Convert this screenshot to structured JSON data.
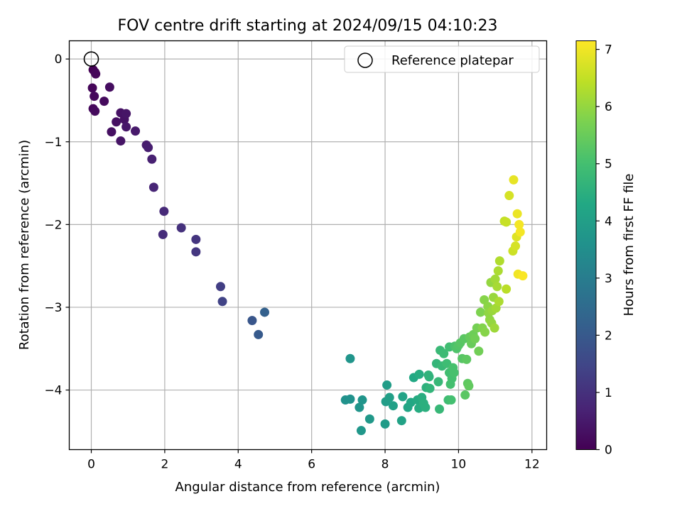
{
  "chart_data": {
    "type": "scatter",
    "title": "FOV centre drift starting at 2024/09/15 04:10:23",
    "xlabel": "Angular distance from reference (arcmin)",
    "ylabel": "Rotation from reference (arcmin)",
    "xlim": [
      -0.6,
      12.4
    ],
    "ylim": [
      -4.72,
      0.22
    ],
    "grid": true,
    "legend": {
      "placement": "top-right",
      "entries": [
        "Reference platepar"
      ]
    },
    "reference_point": {
      "x": 0,
      "y": 0,
      "label": "Reference platepar"
    },
    "colorbar": {
      "label": "Hours from first FF file",
      "range": [
        0,
        7.15
      ],
      "ticks": [
        "0",
        "1",
        "2",
        "3",
        "4",
        "5",
        "6",
        "7"
      ],
      "colormap": "viridis"
    },
    "x_ticks": [
      "0",
      "2",
      "4",
      "6",
      "8",
      "10",
      "12"
    ],
    "y_ticks": [
      "0",
      "−1",
      "−2",
      "−3",
      "−4"
    ],
    "points": [
      {
        "x": 0.05,
        "y": -0.13,
        "c": 0.0
      },
      {
        "x": 0.1,
        "y": -0.16,
        "c": 0.05
      },
      {
        "x": 0.12,
        "y": -0.18,
        "c": 0.1
      },
      {
        "x": 0.03,
        "y": -0.35,
        "c": 0.1
      },
      {
        "x": 0.08,
        "y": -0.45,
        "c": 0.15
      },
      {
        "x": 0.05,
        "y": -0.6,
        "c": 0.15
      },
      {
        "x": 0.1,
        "y": -0.63,
        "c": 0.2
      },
      {
        "x": 0.35,
        "y": -0.51,
        "c": 0.2
      },
      {
        "x": 0.5,
        "y": -0.34,
        "c": 0.25
      },
      {
        "x": 0.55,
        "y": -0.88,
        "c": 0.3
      },
      {
        "x": 0.68,
        "y": -0.76,
        "c": 0.3
      },
      {
        "x": 0.8,
        "y": -0.65,
        "c": 0.35
      },
      {
        "x": 0.9,
        "y": -0.73,
        "c": 0.35
      },
      {
        "x": 0.95,
        "y": -0.66,
        "c": 0.4
      },
      {
        "x": 0.8,
        "y": -0.99,
        "c": 0.4
      },
      {
        "x": 0.95,
        "y": -0.82,
        "c": 0.45
      },
      {
        "x": 1.2,
        "y": -0.87,
        "c": 0.5
      },
      {
        "x": 1.5,
        "y": -1.04,
        "c": 0.55
      },
      {
        "x": 1.55,
        "y": -1.07,
        "c": 0.6
      },
      {
        "x": 1.65,
        "y": -1.21,
        "c": 0.65
      },
      {
        "x": 1.7,
        "y": -1.55,
        "c": 0.75
      },
      {
        "x": 1.98,
        "y": -1.84,
        "c": 0.85
      },
      {
        "x": 1.95,
        "y": -2.12,
        "c": 0.9
      },
      {
        "x": 2.45,
        "y": -2.04,
        "c": 1.0
      },
      {
        "x": 2.85,
        "y": -2.18,
        "c": 1.1
      },
      {
        "x": 2.85,
        "y": -2.33,
        "c": 1.15
      },
      {
        "x": 3.52,
        "y": -2.75,
        "c": 1.3
      },
      {
        "x": 3.57,
        "y": -2.93,
        "c": 1.4
      },
      {
        "x": 4.38,
        "y": -3.16,
        "c": 1.9
      },
      {
        "x": 4.55,
        "y": -3.33,
        "c": 2.0
      },
      {
        "x": 4.72,
        "y": -3.06,
        "c": 2.2
      },
      {
        "x": 6.92,
        "y": -4.12,
        "c": 3.6
      },
      {
        "x": 7.05,
        "y": -4.11,
        "c": 3.6
      },
      {
        "x": 7.38,
        "y": -4.12,
        "c": 3.7
      },
      {
        "x": 7.3,
        "y": -4.21,
        "c": 3.7
      },
      {
        "x": 7.35,
        "y": -4.49,
        "c": 3.75
      },
      {
        "x": 7.58,
        "y": -4.35,
        "c": 3.8
      },
      {
        "x": 7.05,
        "y": -3.62,
        "c": 3.7
      },
      {
        "x": 8.0,
        "y": -4.41,
        "c": 3.9
      },
      {
        "x": 8.02,
        "y": -4.14,
        "c": 3.95
      },
      {
        "x": 8.05,
        "y": -3.94,
        "c": 3.95
      },
      {
        "x": 8.12,
        "y": -4.09,
        "c": 4.0
      },
      {
        "x": 8.22,
        "y": -4.19,
        "c": 4.05
      },
      {
        "x": 8.45,
        "y": -4.37,
        "c": 4.1
      },
      {
        "x": 8.48,
        "y": -4.08,
        "c": 4.15
      },
      {
        "x": 8.62,
        "y": -4.21,
        "c": 4.2
      },
      {
        "x": 8.7,
        "y": -4.15,
        "c": 4.25
      },
      {
        "x": 8.78,
        "y": -3.85,
        "c": 4.3
      },
      {
        "x": 8.88,
        "y": -4.12,
        "c": 4.35
      },
      {
        "x": 8.92,
        "y": -4.22,
        "c": 4.4
      },
      {
        "x": 8.93,
        "y": -3.81,
        "c": 4.4
      },
      {
        "x": 9.0,
        "y": -4.09,
        "c": 4.45
      },
      {
        "x": 9.05,
        "y": -4.16,
        "c": 4.5
      },
      {
        "x": 9.1,
        "y": -4.21,
        "c": 4.5
      },
      {
        "x": 9.12,
        "y": -3.97,
        "c": 4.55
      },
      {
        "x": 9.18,
        "y": -3.82,
        "c": 4.6
      },
      {
        "x": 9.2,
        "y": -3.84,
        "c": 4.6
      },
      {
        "x": 9.22,
        "y": -3.98,
        "c": 4.65
      },
      {
        "x": 9.4,
        "y": -3.68,
        "c": 4.7
      },
      {
        "x": 9.45,
        "y": -3.9,
        "c": 4.75
      },
      {
        "x": 9.48,
        "y": -4.23,
        "c": 4.75
      },
      {
        "x": 9.5,
        "y": -3.52,
        "c": 4.8
      },
      {
        "x": 9.55,
        "y": -3.71,
        "c": 4.8
      },
      {
        "x": 9.6,
        "y": -3.56,
        "c": 4.85
      },
      {
        "x": 9.68,
        "y": -3.68,
        "c": 4.9
      },
      {
        "x": 9.72,
        "y": -4.12,
        "c": 4.9
      },
      {
        "x": 9.75,
        "y": -3.79,
        "c": 4.95
      },
      {
        "x": 9.75,
        "y": -3.48,
        "c": 4.95
      },
      {
        "x": 9.78,
        "y": -3.93,
        "c": 5.0
      },
      {
        "x": 9.8,
        "y": -4.12,
        "c": 5.0
      },
      {
        "x": 9.82,
        "y": -3.86,
        "c": 5.0
      },
      {
        "x": 9.85,
        "y": -3.73,
        "c": 5.05
      },
      {
        "x": 9.88,
        "y": -3.79,
        "c": 5.05
      },
      {
        "x": 9.9,
        "y": -3.47,
        "c": 5.1
      },
      {
        "x": 9.95,
        "y": -3.5,
        "c": 5.15
      },
      {
        "x": 10.0,
        "y": -3.46,
        "c": 5.2
      },
      {
        "x": 10.05,
        "y": -3.43,
        "c": 5.25
      },
      {
        "x": 10.1,
        "y": -3.62,
        "c": 5.25
      },
      {
        "x": 10.15,
        "y": -3.38,
        "c": 5.3
      },
      {
        "x": 10.18,
        "y": -4.06,
        "c": 5.3
      },
      {
        "x": 10.22,
        "y": -3.63,
        "c": 5.35
      },
      {
        "x": 10.25,
        "y": -3.92,
        "c": 5.35
      },
      {
        "x": 10.28,
        "y": -3.95,
        "c": 5.4
      },
      {
        "x": 10.3,
        "y": -3.36,
        "c": 5.45
      },
      {
        "x": 10.35,
        "y": -3.44,
        "c": 5.5
      },
      {
        "x": 10.4,
        "y": -3.33,
        "c": 5.55
      },
      {
        "x": 10.45,
        "y": -3.38,
        "c": 5.6
      },
      {
        "x": 10.5,
        "y": -3.25,
        "c": 5.65
      },
      {
        "x": 10.55,
        "y": -3.53,
        "c": 5.6
      },
      {
        "x": 10.6,
        "y": -3.06,
        "c": 5.75
      },
      {
        "x": 10.65,
        "y": -3.25,
        "c": 5.8
      },
      {
        "x": 10.7,
        "y": -2.91,
        "c": 5.85
      },
      {
        "x": 10.72,
        "y": -3.3,
        "c": 5.85
      },
      {
        "x": 10.8,
        "y": -2.99,
        "c": 5.9
      },
      {
        "x": 10.82,
        "y": -3.07,
        "c": 5.95
      },
      {
        "x": 10.85,
        "y": -3.15,
        "c": 5.95
      },
      {
        "x": 10.88,
        "y": -2.7,
        "c": 6.0
      },
      {
        "x": 10.9,
        "y": -3.19,
        "c": 6.0
      },
      {
        "x": 10.92,
        "y": -3.04,
        "c": 6.05
      },
      {
        "x": 10.95,
        "y": -2.88,
        "c": 6.05
      },
      {
        "x": 10.98,
        "y": -3.25,
        "c": 6.1
      },
      {
        "x": 11.0,
        "y": -2.66,
        "c": 6.15
      },
      {
        "x": 11.02,
        "y": -3.01,
        "c": 6.15
      },
      {
        "x": 11.05,
        "y": -2.75,
        "c": 6.2
      },
      {
        "x": 11.08,
        "y": -2.56,
        "c": 6.25
      },
      {
        "x": 11.1,
        "y": -2.93,
        "c": 6.25
      },
      {
        "x": 11.12,
        "y": -2.44,
        "c": 6.3
      },
      {
        "x": 11.3,
        "y": -2.78,
        "c": 6.4
      },
      {
        "x": 11.25,
        "y": -1.96,
        "c": 6.5
      },
      {
        "x": 11.3,
        "y": -1.97,
        "c": 6.55
      },
      {
        "x": 11.38,
        "y": -1.65,
        "c": 6.7
      },
      {
        "x": 11.48,
        "y": -2.32,
        "c": 6.6
      },
      {
        "x": 11.5,
        "y": -1.46,
        "c": 6.9
      },
      {
        "x": 11.55,
        "y": -2.26,
        "c": 6.7
      },
      {
        "x": 11.58,
        "y": -2.15,
        "c": 6.8
      },
      {
        "x": 11.6,
        "y": -1.87,
        "c": 6.95
      },
      {
        "x": 11.62,
        "y": -2.6,
        "c": 7.0
      },
      {
        "x": 11.65,
        "y": -2.0,
        "c": 7.05
      },
      {
        "x": 11.68,
        "y": -2.09,
        "c": 7.05
      },
      {
        "x": 11.75,
        "y": -2.62,
        "c": 7.1
      }
    ]
  }
}
